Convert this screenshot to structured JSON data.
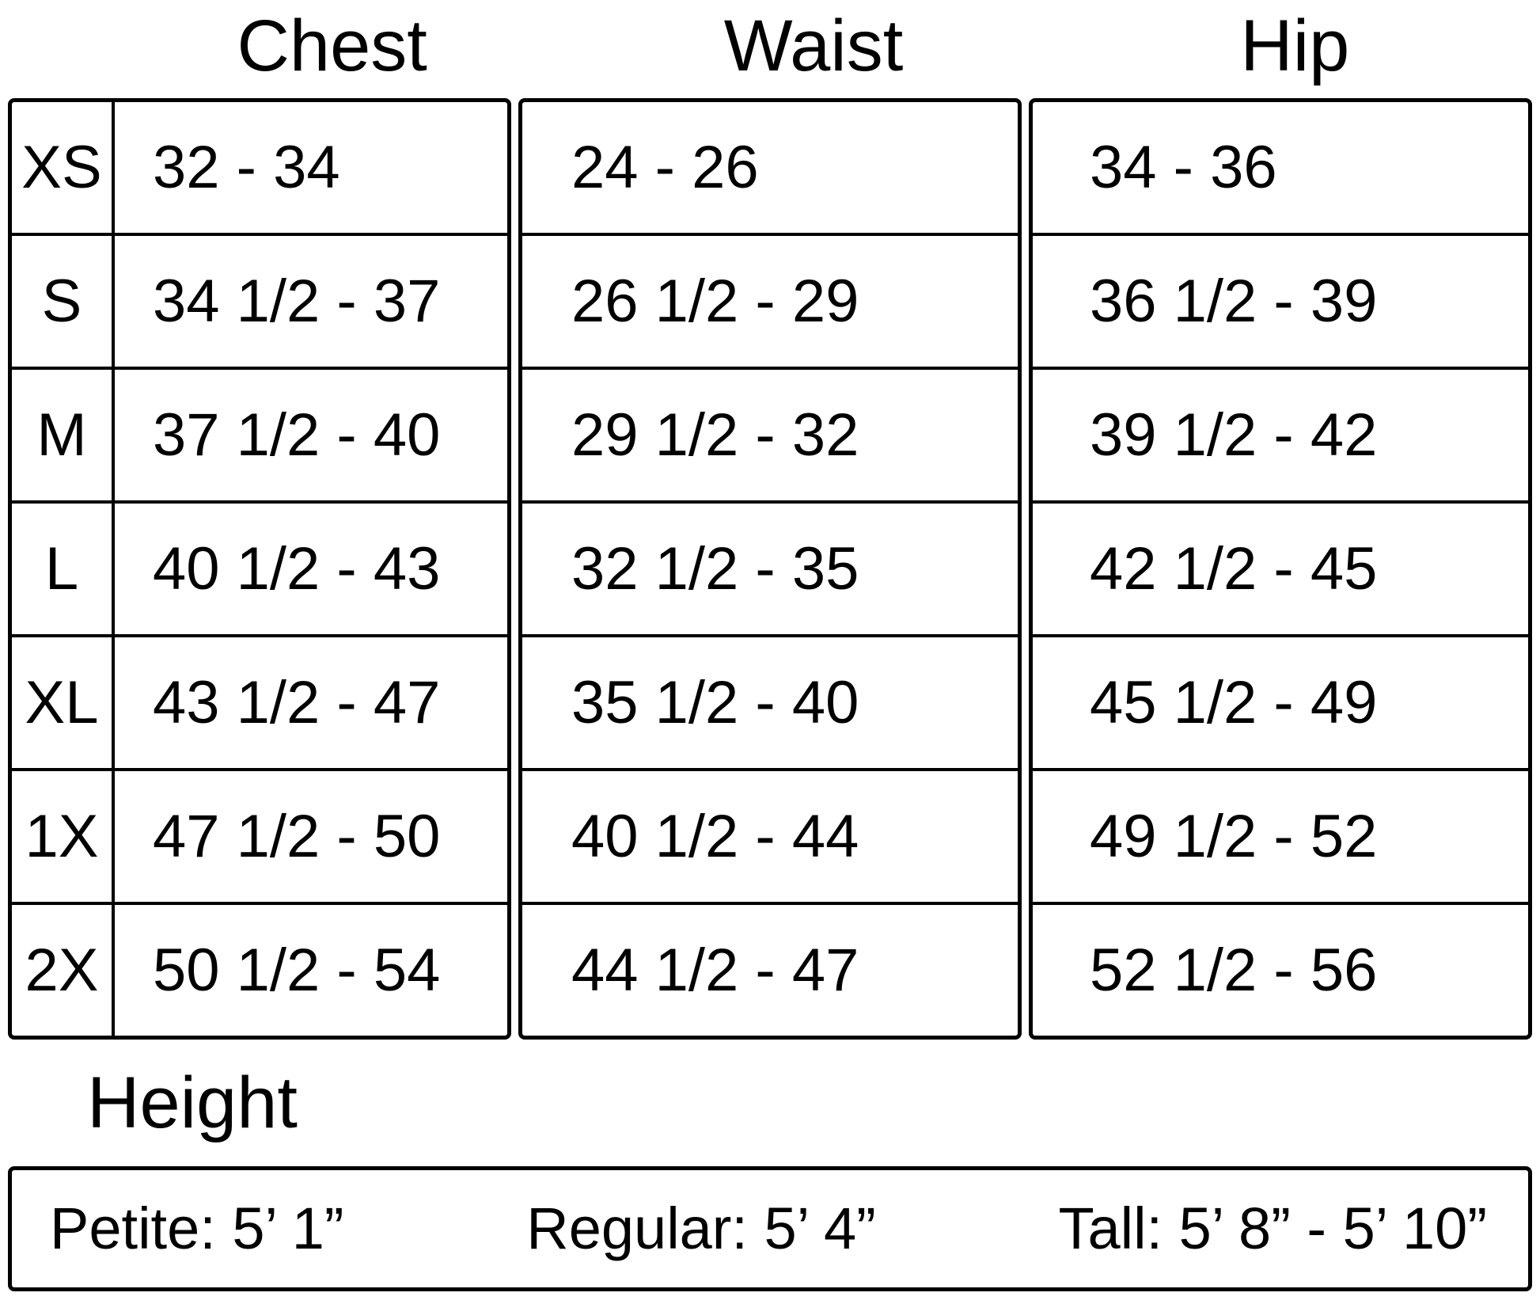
{
  "colors": {
    "background": "#ffffff",
    "text": "#000000",
    "border": "#000000"
  },
  "size_table": {
    "column_headers": [
      "Chest",
      "Waist",
      "Hip"
    ],
    "rows": [
      {
        "size": "XS",
        "chest": "32 - 34",
        "waist": "24 - 26",
        "hip": "34 - 36"
      },
      {
        "size": "S",
        "chest": "34 1/2 - 37",
        "waist": "26 1/2 - 29",
        "hip": "36 1/2 - 39"
      },
      {
        "size": "M",
        "chest": "37 1/2 - 40",
        "waist": "29 1/2 - 32",
        "hip": "39 1/2 - 42"
      },
      {
        "size": "L",
        "chest": "40 1/2 - 43",
        "waist": "32 1/2 - 35",
        "hip": "42 1/2 - 45"
      },
      {
        "size": "XL",
        "chest": "43 1/2 - 47",
        "waist": "35 1/2 - 40",
        "hip": "45 1/2 - 49"
      },
      {
        "size": "1X",
        "chest": "47 1/2 - 50",
        "waist": "40 1/2 - 44",
        "hip": "49 1/2 - 52"
      },
      {
        "size": "2X",
        "chest": "50 1/2 - 54",
        "waist": "44 1/2 - 47",
        "hip": "52 1/2 - 56"
      }
    ]
  },
  "height_section": {
    "title": "Height",
    "petite": "Petite: 5’ 1”",
    "regular": "Regular: 5’ 4”",
    "tall": "Tall: 5’ 8” - 5’ 10”"
  }
}
